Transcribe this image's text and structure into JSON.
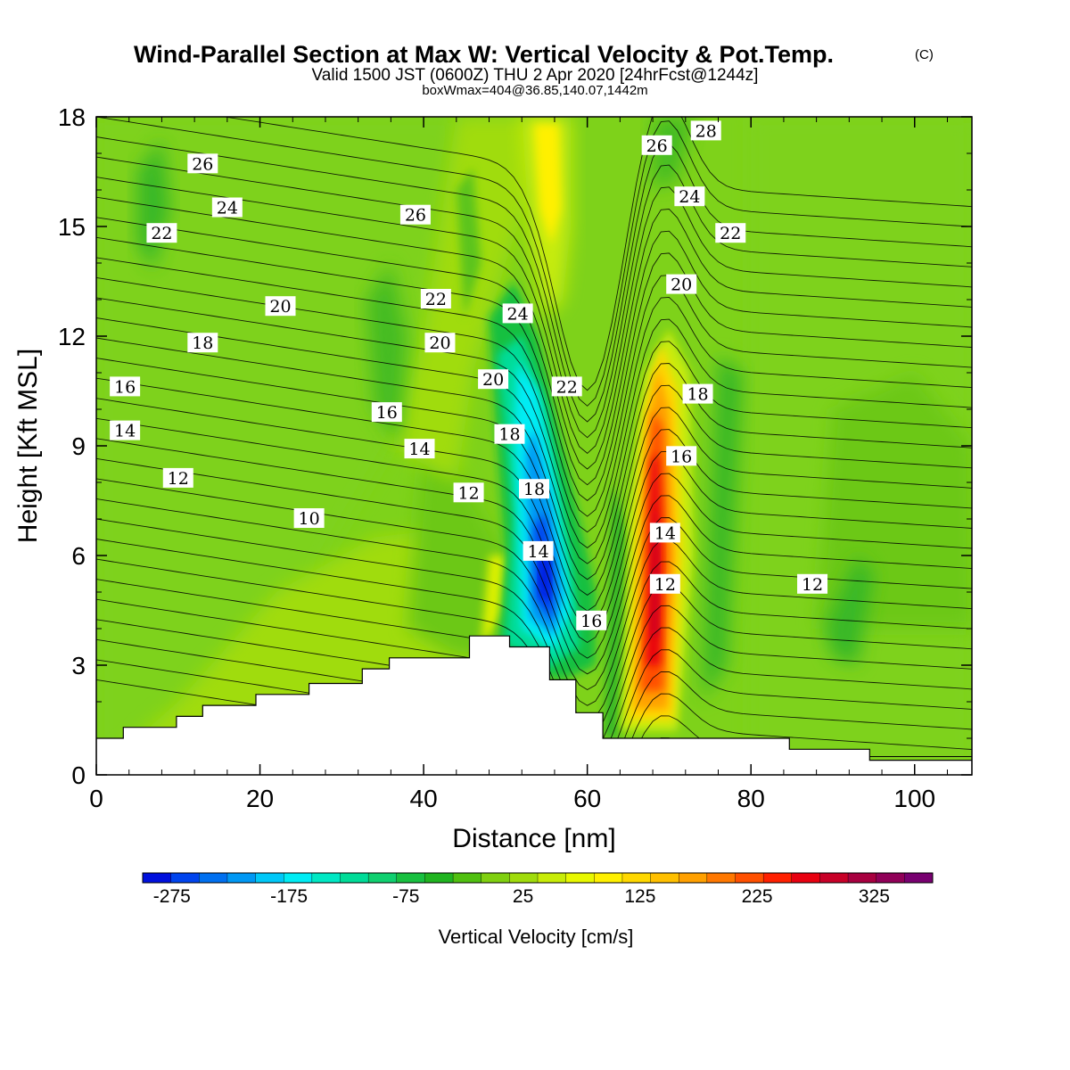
{
  "header": {
    "title": "Wind-Parallel Section at Max W: Vertical Velocity & Pot.Temp.",
    "copyright": "(C)",
    "valid_line": "Valid 1500 JST (0600Z) THU 2 Apr 2020 [24hrFcst@1244z]",
    "box_line": "boxWmax=404@36.85,140.07,1442m"
  },
  "chart_data": {
    "type": "heatmap",
    "xlabel": "Distance [nm]",
    "ylabel": "Height [Kft MSL]",
    "xlim": [
      0,
      107
    ],
    "ylim": [
      0,
      18
    ],
    "x_ticks": [
      0,
      20,
      40,
      60,
      80,
      100
    ],
    "y_ticks": [
      0,
      3,
      6,
      9,
      12,
      15,
      18
    ],
    "fill_variable": "Vertical Velocity [cm/s]",
    "contour_variable": "Potential Temperature",
    "colorbar": {
      "label": "Vertical Velocity [cm/s]",
      "tick_labels": [
        "-275",
        "-175",
        "-75",
        "25",
        "125",
        "225",
        "325"
      ],
      "tick_values": [
        -275,
        -175,
        -75,
        25,
        125,
        225,
        325
      ],
      "min": -300,
      "max": 375,
      "step": 25,
      "colors": [
        "#0010dd",
        "#0044ee",
        "#0070f0",
        "#0098f4",
        "#00c8f8",
        "#00ecf4",
        "#00e8c4",
        "#00dc98",
        "#10d070",
        "#18c040",
        "#20b420",
        "#50c010",
        "#80d010",
        "#a0dc0c",
        "#c8ec08",
        "#e8f800",
        "#fff000",
        "#ffd800",
        "#ffc000",
        "#ffa000",
        "#ff7800",
        "#ff5000",
        "#ff2000",
        "#e80010",
        "#c80028",
        "#a80040",
        "#900058",
        "#780070"
      ]
    },
    "max_updraft": {
      "value_cm_s": 404,
      "lat": 36.85,
      "lon": 140.07,
      "height_m": 1442
    },
    "contour_labels": [
      {
        "label": "26",
        "x": 13,
        "y": 16.7
      },
      {
        "label": "24",
        "x": 16,
        "y": 15.5
      },
      {
        "label": "22",
        "x": 8,
        "y": 14.8
      },
      {
        "label": "26",
        "x": 39,
        "y": 15.3
      },
      {
        "label": "20",
        "x": 22.5,
        "y": 12.8
      },
      {
        "label": "22",
        "x": 41.5,
        "y": 13.0
      },
      {
        "label": "24",
        "x": 51.5,
        "y": 12.6
      },
      {
        "label": "18",
        "x": 13,
        "y": 11.8
      },
      {
        "label": "20",
        "x": 42,
        "y": 11.8
      },
      {
        "label": "16",
        "x": 3.5,
        "y": 10.6
      },
      {
        "label": "20",
        "x": 48.5,
        "y": 10.8
      },
      {
        "label": "22",
        "x": 57.5,
        "y": 10.6
      },
      {
        "label": "16",
        "x": 35.5,
        "y": 9.9
      },
      {
        "label": "18",
        "x": 50.5,
        "y": 9.3
      },
      {
        "label": "14",
        "x": 3.5,
        "y": 9.4
      },
      {
        "label": "14",
        "x": 39.5,
        "y": 8.9
      },
      {
        "label": "12",
        "x": 10,
        "y": 8.1
      },
      {
        "label": "12",
        "x": 45.5,
        "y": 7.7
      },
      {
        "label": "18",
        "x": 53.5,
        "y": 7.8
      },
      {
        "label": "10",
        "x": 26,
        "y": 7.0
      },
      {
        "label": "14",
        "x": 54,
        "y": 6.1
      },
      {
        "label": "16",
        "x": 60.5,
        "y": 4.2
      },
      {
        "label": "26",
        "x": 68.5,
        "y": 17.2
      },
      {
        "label": "28",
        "x": 74.5,
        "y": 17.6
      },
      {
        "label": "24",
        "x": 72.5,
        "y": 15.8
      },
      {
        "label": "22",
        "x": 77.5,
        "y": 14.8
      },
      {
        "label": "20",
        "x": 71.5,
        "y": 13.4
      },
      {
        "label": "18",
        "x": 73.5,
        "y": 10.4
      },
      {
        "label": "16",
        "x": 71.5,
        "y": 8.7
      },
      {
        "label": "14",
        "x": 69.5,
        "y": 6.6
      },
      {
        "label": "12",
        "x": 69.5,
        "y": 5.2
      },
      {
        "label": "12",
        "x": 87.5,
        "y": 5.2
      }
    ],
    "terrain": [
      [
        0,
        1.0
      ],
      [
        3.3,
        1.0
      ],
      [
        3.3,
        1.3
      ],
      [
        9.8,
        1.3
      ],
      [
        9.8,
        1.6
      ],
      [
        13.0,
        1.6
      ],
      [
        13.0,
        1.9
      ],
      [
        19.5,
        1.9
      ],
      [
        19.5,
        2.2
      ],
      [
        26.0,
        2.2
      ],
      [
        26.0,
        2.5
      ],
      [
        32.5,
        2.5
      ],
      [
        32.5,
        2.9
      ],
      [
        35.8,
        2.9
      ],
      [
        35.8,
        3.2
      ],
      [
        45.6,
        3.2
      ],
      [
        45.6,
        3.8
      ],
      [
        50.5,
        3.8
      ],
      [
        50.5,
        3.5
      ],
      [
        55.4,
        3.5
      ],
      [
        55.4,
        2.6
      ],
      [
        58.6,
        2.6
      ],
      [
        58.6,
        1.7
      ],
      [
        61.9,
        1.7
      ],
      [
        61.9,
        1.0
      ],
      [
        84.7,
        1.0
      ],
      [
        84.7,
        0.7
      ],
      [
        94.5,
        0.7
      ],
      [
        94.5,
        0.4
      ],
      [
        107,
        0.4
      ]
    ]
  }
}
